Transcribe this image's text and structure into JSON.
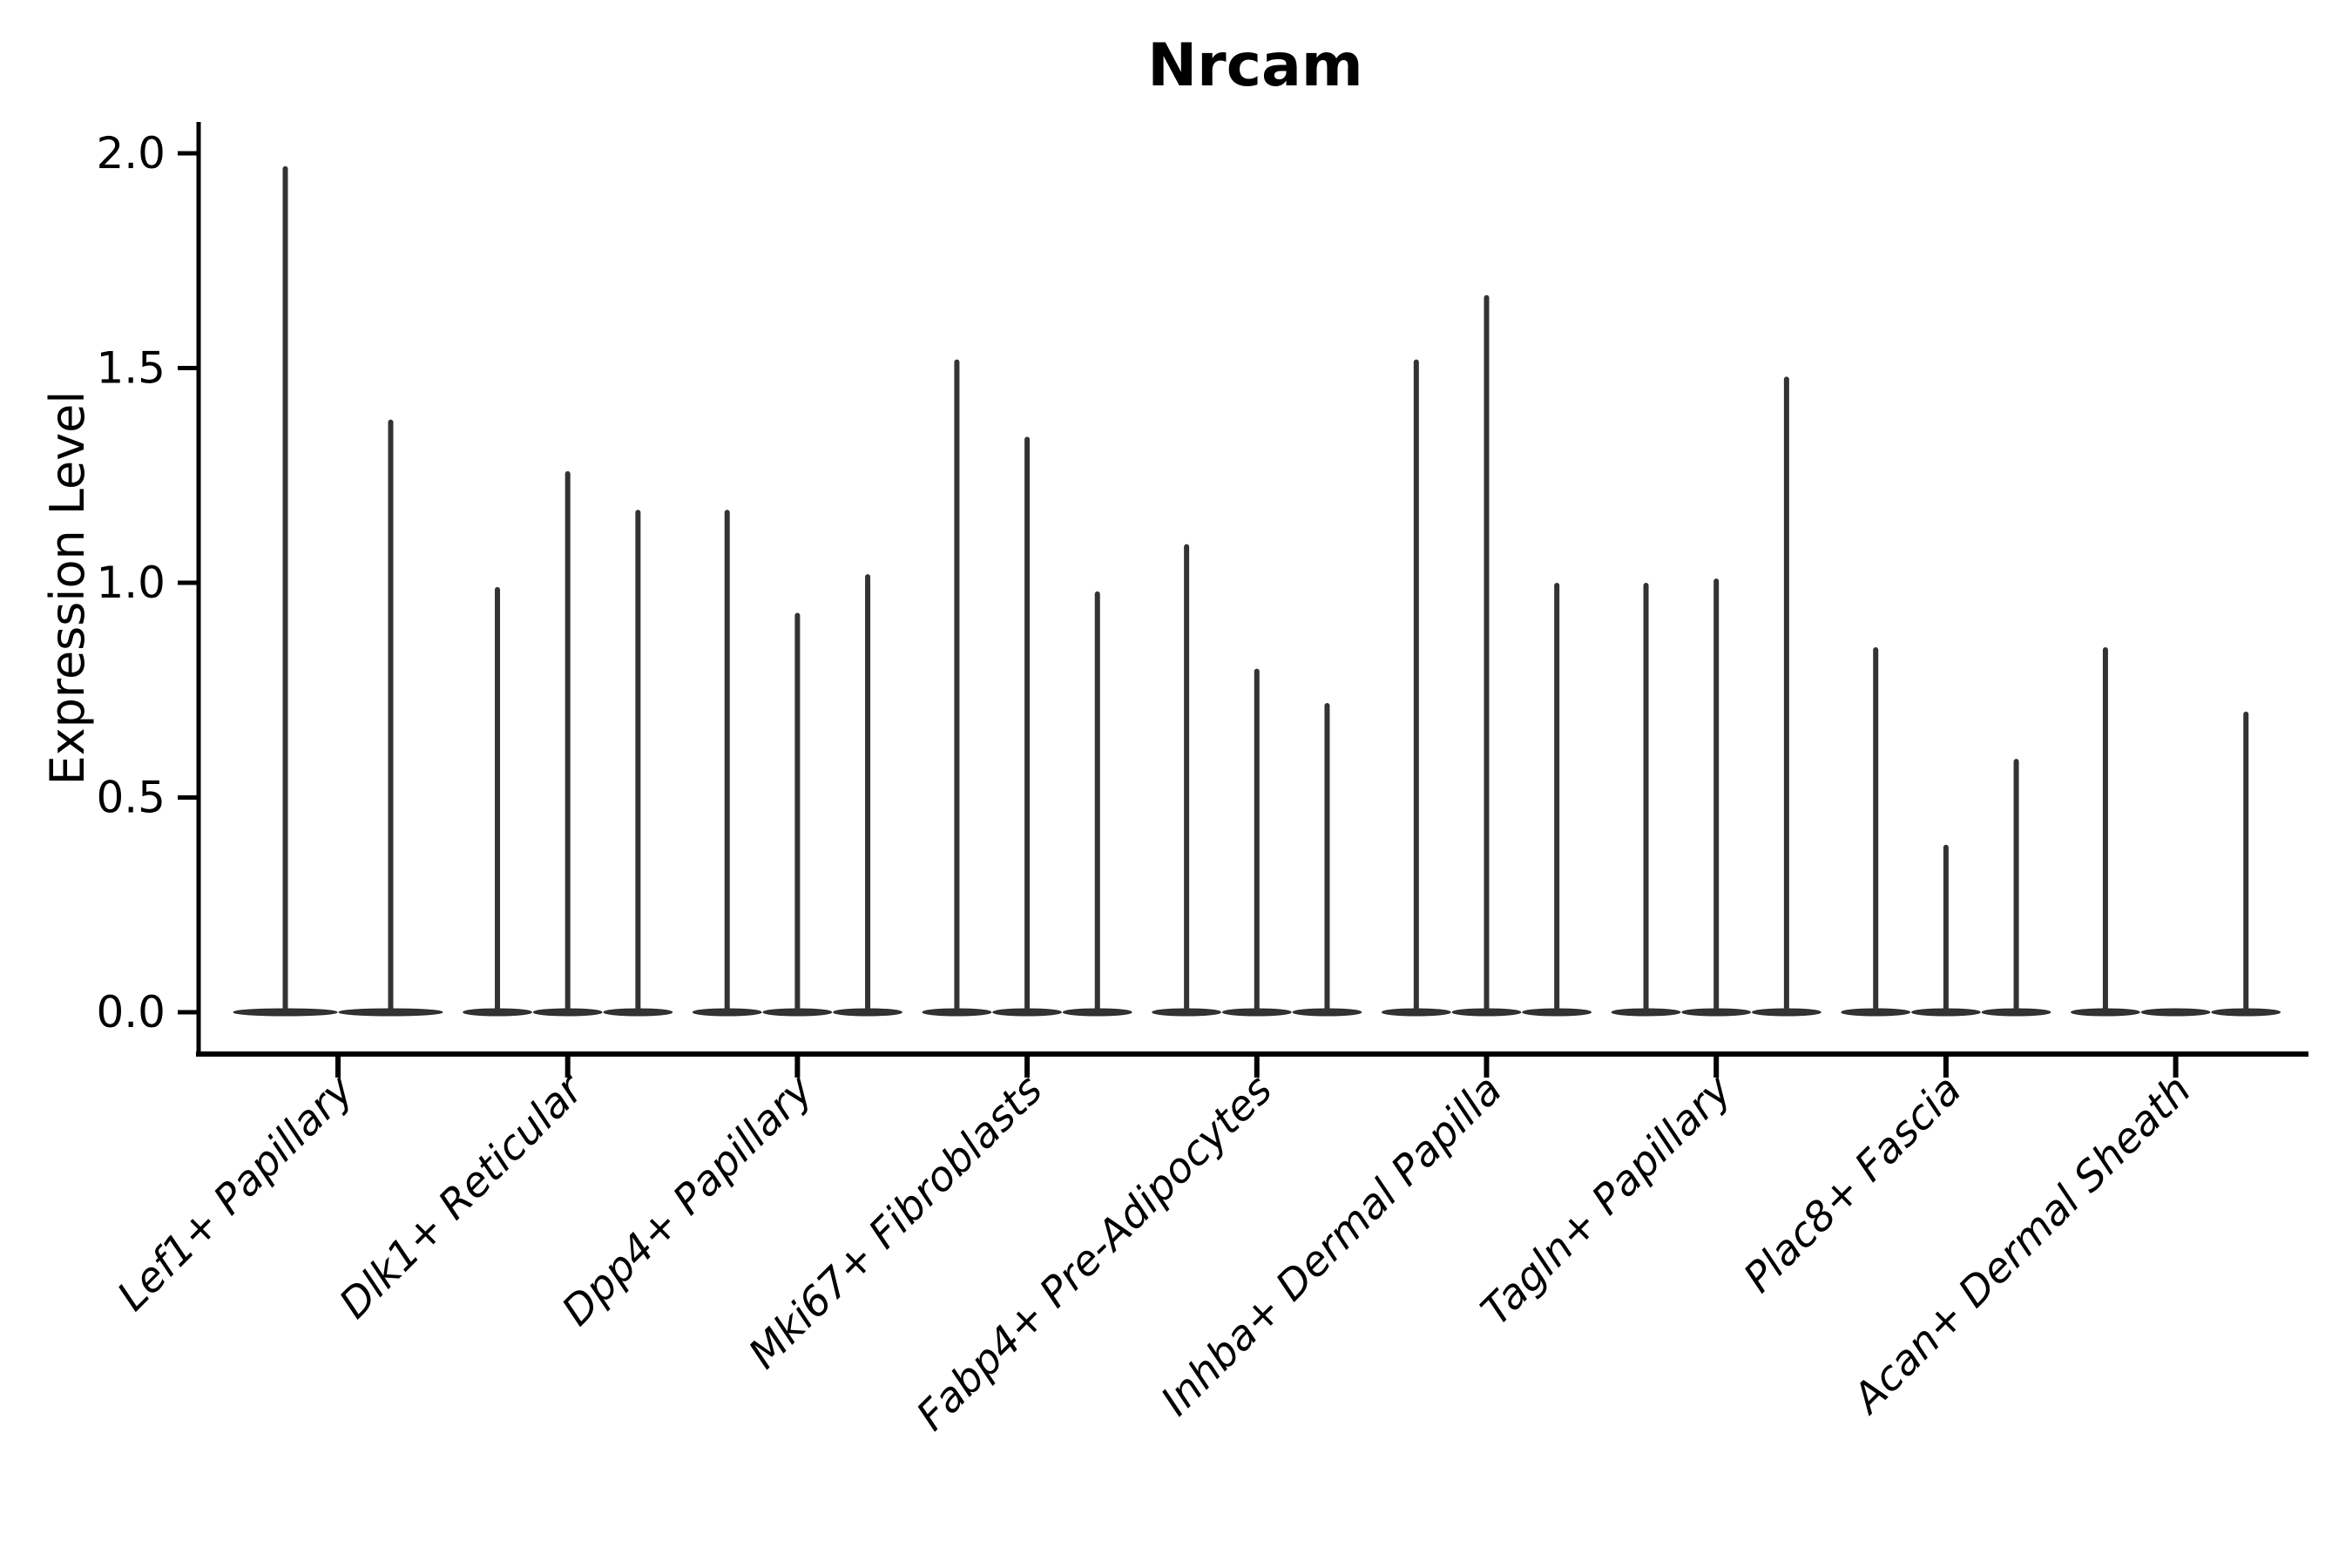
{
  "figure": {
    "title": "Nrcam",
    "ylabel": "Expression Level"
  },
  "chart_data": {
    "type": "violin",
    "title": "Nrcam",
    "xlabel": "",
    "ylabel": "Expression Level",
    "ylim": [
      0,
      2.08
    ],
    "yticks": [
      0.0,
      0.5,
      1.0,
      1.5,
      2.0
    ],
    "ytick_labels": [
      "0.0",
      "0.5",
      "1.0",
      "1.5",
      "2.0"
    ],
    "grid": false,
    "legend": "none",
    "style_notes": "Seurat/ggplot-style stacked violin: very narrow spike violins with wide flat base at 0, dark gray fill, x labels rotated 45deg italic",
    "categories": [
      "Lef1+ Papillary",
      "Dlk1+ Reticular",
      "Dpp4+ Papillary",
      "Mki67+ Fibroblasts",
      "Fabp4+ Pre-Adipocytes",
      "Inhba+ Dermal Papilla",
      "Tagln+ Papillary",
      "Plac8+ Fascia",
      "Acan+ Dermal Sheath"
    ],
    "groups": [
      {
        "category": "Lef1+ Papillary",
        "violin_max_expression": [
          1.97,
          1.38
        ]
      },
      {
        "category": "Dlk1+ Reticular",
        "violin_max_expression": [
          0.99,
          1.26,
          1.17
        ]
      },
      {
        "category": "Dpp4+ Papillary",
        "violin_max_expression": [
          1.17,
          0.93,
          1.02
        ]
      },
      {
        "category": "Mki67+ Fibroblasts",
        "violin_max_expression": [
          1.52,
          1.34,
          0.98
        ]
      },
      {
        "category": "Fabp4+ Pre-Adipocytes",
        "violin_max_expression": [
          1.09,
          0.8,
          0.72
        ]
      },
      {
        "category": "Inhba+ Dermal Papilla",
        "violin_max_expression": [
          1.52,
          1.67,
          1.0
        ]
      },
      {
        "category": "Tagln+ Papillary",
        "violin_max_expression": [
          1.0,
          1.01,
          1.48
        ]
      },
      {
        "category": "Plac8+ Fascia",
        "violin_max_expression": [
          0.85,
          0.39,
          0.59
        ]
      },
      {
        "category": "Acan+ Dermal Sheath",
        "violin_max_expression": [
          0.85,
          0.0,
          0.7
        ]
      }
    ],
    "colors": {
      "violin_fill": "#333333",
      "violin_edge": "#262626",
      "axis": "#000000",
      "text": "#000000",
      "background": "#ffffff"
    }
  }
}
